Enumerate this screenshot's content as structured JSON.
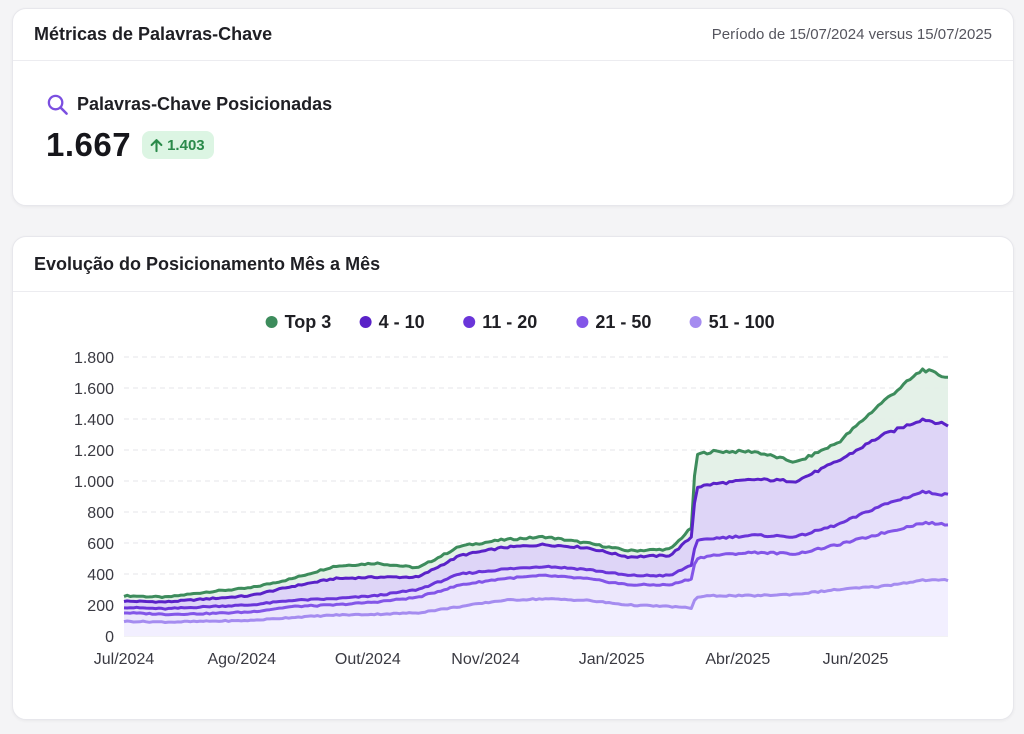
{
  "metrics_card": {
    "title": "Métricas de Palavras-Chave",
    "period": "Período de 15/07/2024 versus 15/07/2025",
    "metric_label": "Palavras-Chave Posicionadas",
    "metric_value": "1.667",
    "delta": "1.403",
    "icons": {
      "metric": "search-icon",
      "delta": "arrow-up-icon"
    }
  },
  "chart_card": {
    "title": "Evolução do Posicionamento Mês a Mês"
  },
  "chart_data": {
    "type": "area",
    "stacked": false,
    "legend_position": "top",
    "grid": true,
    "ylim": [
      0,
      1800
    ],
    "y_ticks": [
      0,
      200,
      400,
      600,
      800,
      1000,
      1200,
      1400,
      1600,
      1800
    ],
    "y_tick_labels": [
      "0",
      "200",
      "400",
      "600",
      "800",
      "1.000",
      "1.200",
      "1.400",
      "1.600",
      "1.800"
    ],
    "x_tick_labels": [
      "Jul/2024",
      "Ago/2024",
      "Out/2024",
      "Nov/2024",
      "Jan/2025",
      "Abr/2025",
      "Jun/2025"
    ],
    "x_tick_positions": [
      0,
      1.4,
      2.9,
      4.3,
      5.8,
      7.3,
      8.7
    ],
    "x": [
      0,
      0.5,
      1,
      1.5,
      2,
      2.5,
      3,
      3.5,
      4,
      4.5,
      5,
      5.5,
      6,
      6.5,
      6.75,
      6.8,
      7,
      7.5,
      8,
      8.5,
      9,
      9.5,
      9.8
    ],
    "series": [
      {
        "name": "Top 3",
        "color": "#3d8c5c",
        "values": [
          260,
          250,
          285,
          310,
          370,
          450,
          470,
          440,
          580,
          620,
          640,
          600,
          550,
          560,
          700,
          1170,
          1190,
          1190,
          1120,
          1250,
          1500,
          1720,
          1667
        ]
      },
      {
        "name": "4 - 10",
        "color": "#5a22c8",
        "values": [
          225,
          220,
          240,
          260,
          320,
          370,
          380,
          380,
          520,
          570,
          590,
          570,
          510,
          520,
          640,
          960,
          980,
          1010,
          1000,
          1130,
          1290,
          1400,
          1360
        ]
      },
      {
        "name": "11 - 20",
        "color": "#6a35d9",
        "values": [
          185,
          175,
          190,
          200,
          230,
          240,
          260,
          300,
          400,
          430,
          450,
          430,
          390,
          390,
          460,
          610,
          630,
          650,
          640,
          720,
          840,
          930,
          910
        ]
      },
      {
        "name": "21 - 50",
        "color": "#8356e8",
        "values": [
          150,
          140,
          145,
          155,
          190,
          200,
          220,
          250,
          330,
          370,
          390,
          370,
          330,
          330,
          370,
          500,
          520,
          540,
          530,
          590,
          660,
          730,
          720
        ]
      },
      {
        "name": "51 - 100",
        "color": "#a58cf0",
        "values": [
          95,
          90,
          95,
          100,
          120,
          135,
          140,
          150,
          190,
          230,
          240,
          230,
          200,
          190,
          180,
          250,
          260,
          260,
          270,
          300,
          320,
          360,
          360
        ]
      }
    ]
  }
}
